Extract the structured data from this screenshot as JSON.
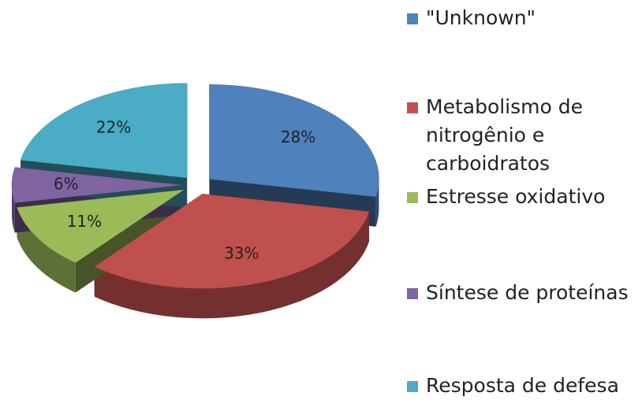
{
  "chart_data": {
    "type": "pie",
    "categories": [
      "\"Unknown\"",
      "Metabolismo de nitrogênio e carboidratos",
      "Estresse oxidativo",
      "Síntese de proteínas",
      "Resposta de defesa"
    ],
    "values": [
      28,
      33,
      11,
      6,
      22
    ],
    "value_labels": [
      "28%",
      "33%",
      "11%",
      "6%",
      "22%"
    ],
    "colors": [
      "#4f81bd",
      "#c0504d",
      "#9bbb59",
      "#8064a2",
      "#4bacc6"
    ],
    "legend": "right"
  }
}
